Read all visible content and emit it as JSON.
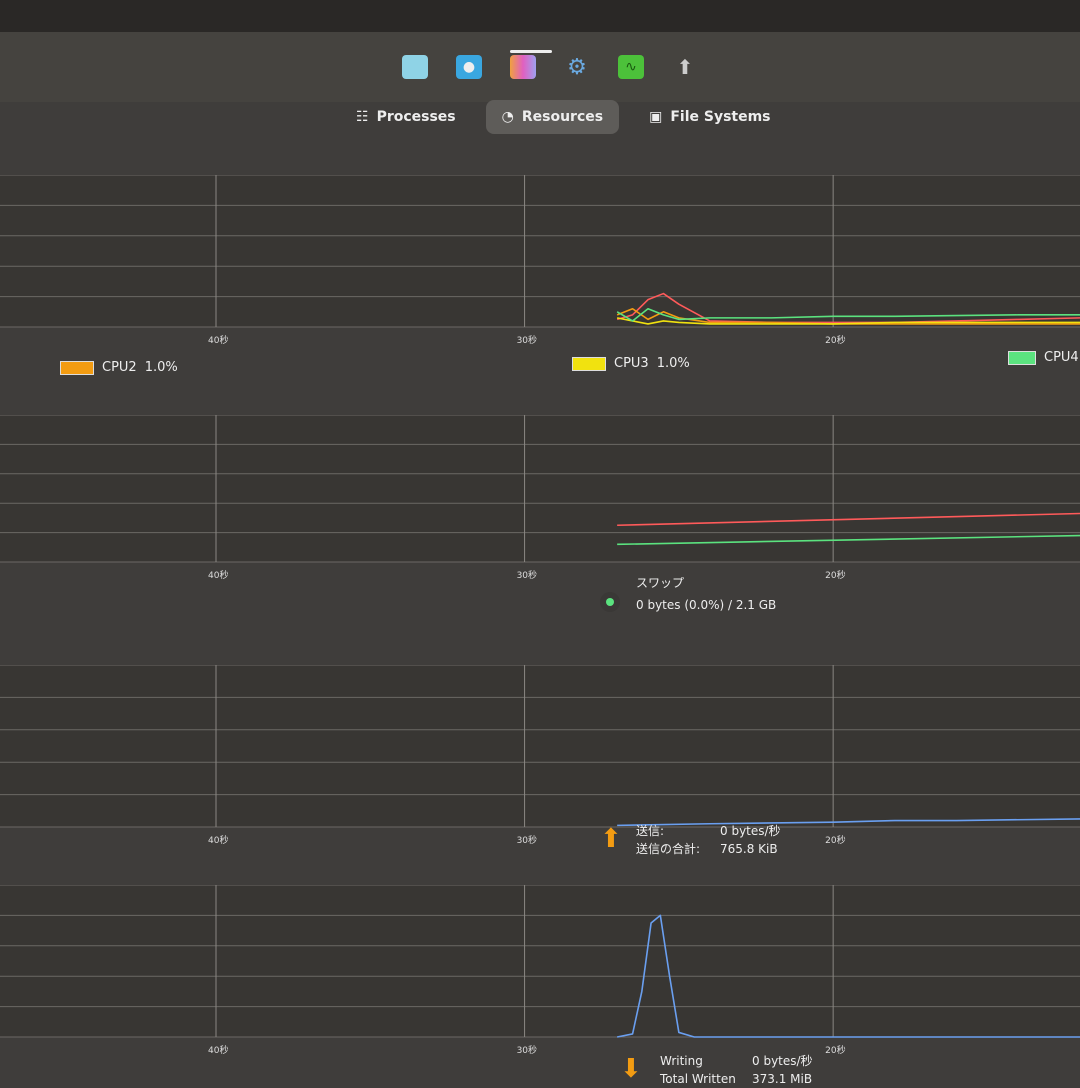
{
  "dock": {
    "icons": [
      {
        "name": "file-manager-icon",
        "color": "#8fd3e6"
      },
      {
        "name": "screenshot-icon",
        "color": "#3aa7e0"
      },
      {
        "name": "color-palette-icon",
        "color": "#f0a040"
      },
      {
        "name": "settings-gear-icon",
        "color": "#6aa9e0"
      },
      {
        "name": "system-monitor-icon",
        "color": "#4cc13a"
      },
      {
        "name": "software-update-icon",
        "color": "#cccccc"
      }
    ]
  },
  "tabs": [
    {
      "label": "Processes",
      "icon": "list-icon"
    },
    {
      "label": "Resources",
      "icon": "gauge-icon",
      "active": true
    },
    {
      "label": "File Systems",
      "icon": "disk-icon"
    }
  ],
  "time_labels": [
    "40秒",
    "30秒",
    "20秒"
  ],
  "cpu": {
    "legend": [
      {
        "label": "CPU2",
        "value": "1.0%",
        "color": "#f39c12"
      },
      {
        "label": "CPU3",
        "value": "1.0%",
        "color": "#f1e20f"
      },
      {
        "label": "CPU4",
        "value": "",
        "color": "#5be37f"
      }
    ],
    "series": [
      {
        "color": "#ff5a5a",
        "t": [
          27,
          26.5,
          26,
          25.5,
          25,
          24,
          22,
          20,
          18,
          14,
          12
        ],
        "v": [
          5,
          8,
          18,
          22,
          15,
          4,
          3,
          3,
          3,
          5,
          6
        ]
      },
      {
        "color": "#f39c12",
        "t": [
          27,
          26.5,
          26,
          25.5,
          25,
          24,
          22,
          20,
          18,
          14,
          12
        ],
        "v": [
          8,
          12,
          5,
          10,
          6,
          3,
          3,
          2,
          2,
          2,
          2
        ]
      },
      {
        "color": "#f1e20f",
        "t": [
          27,
          26.5,
          26,
          25.5,
          25,
          24,
          22,
          20,
          18,
          14,
          12
        ],
        "v": [
          6,
          4,
          2,
          4,
          3,
          2,
          2,
          2,
          3,
          3,
          3
        ]
      },
      {
        "color": "#5be37f",
        "t": [
          27,
          26.5,
          26,
          25.5,
          25,
          24,
          22,
          20,
          18,
          14,
          12
        ],
        "v": [
          10,
          4,
          12,
          8,
          5,
          6,
          6,
          7,
          7,
          8,
          8
        ]
      }
    ]
  },
  "memory": {
    "series": [
      {
        "color": "#ff5a5a",
        "t": [
          27,
          12
        ],
        "v": [
          25,
          33
        ]
      },
      {
        "color": "#5be37f",
        "t": [
          27,
          12
        ],
        "v": [
          12,
          18
        ]
      }
    ],
    "swap": {
      "label": "スワップ",
      "value": "0 bytes (0.0%) / 2.1 GB",
      "color": "#5be37f"
    }
  },
  "network": {
    "series": [
      {
        "color": "#6a9ff0",
        "t": [
          27,
          24,
          20,
          18,
          16,
          12
        ],
        "v": [
          1,
          2,
          3,
          4,
          4,
          5
        ]
      }
    ],
    "send": {
      "label": "送信:",
      "value": "0 bytes/秒",
      "total_label": "送信の合計:",
      "total_value": "765.8 KiB",
      "color": "#f39c12"
    }
  },
  "disk": {
    "series": [
      {
        "color": "#6a9ff0",
        "t": [
          27,
          26.5,
          26.2,
          25.9,
          25.6,
          25.3,
          25,
          24.5,
          22,
          12
        ],
        "v": [
          0,
          2,
          30,
          75,
          80,
          40,
          3,
          0,
          0,
          0
        ]
      }
    ],
    "write": {
      "label": "Writing",
      "value": "0 bytes/秒",
      "total_label": "Total Written",
      "total_value": "373.1 MiB",
      "color": "#f39c12"
    }
  }
}
